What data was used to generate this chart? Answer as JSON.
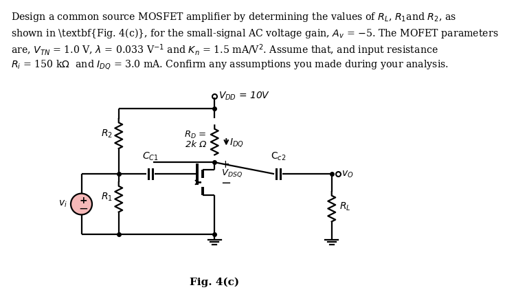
{
  "fig_label": "Fig. 4(c)",
  "vdd_label": "$V_{DD}$ = 10V",
  "rd_label1": "$R_D$ =",
  "rd_label2": "2k Ω",
  "idq_label": "$I_{DQ}$",
  "r2_label": "$R_2$",
  "r1_label": "$R_1$",
  "cc1_label": "$C_{C1}$",
  "cc2_label": "C$_{c2}$",
  "vdsq_label": "$V_{DSQ}$",
  "vo_label": "$v_O$",
  "vi_label": "$v_i$",
  "rl_label": "$R_L$",
  "bg_color": "#ffffff",
  "title_line1": "Design a common source MOSFET amplifier by determining the values of $R_L$, $R_1$and $R_2$, as",
  "title_line2": "shown in \\textbf{Fig. 4(c)}, for the small-signal AC voltage gain, $A_v$ = $-$5. The MOFET parameters",
  "title_line3": "are, $V_{TN}$ = 1.0 V, $\\lambda$ = 0.033 V$^{-1}$ and $K_n$ = 1.5 mA/V$^2$. Assume that, and input resistance",
  "title_line4": "$R_i$ = 150 k$\\Omega$  and $I_{DQ}$ = 3.0 mA. Confirm any assumptions you made during your analysis."
}
